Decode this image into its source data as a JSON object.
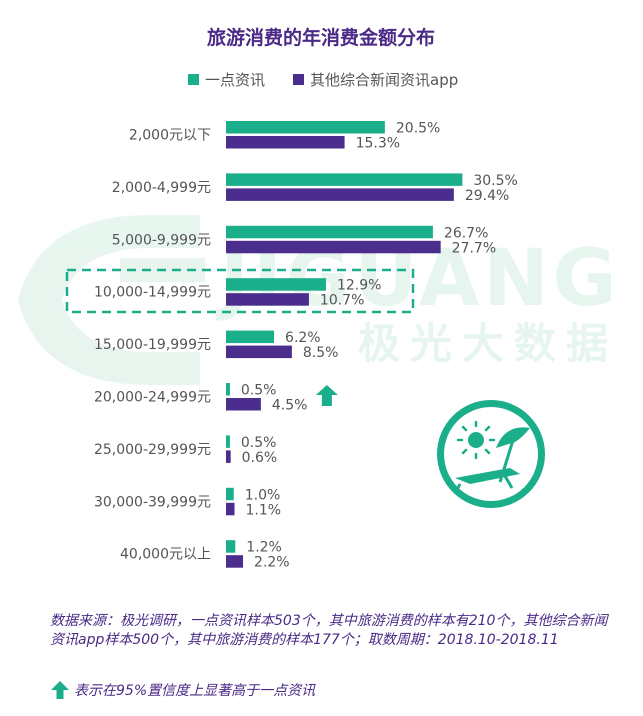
{
  "colors": {
    "series1": "#1aae8a",
    "series2": "#4b2d8d",
    "title": "#4a2a86",
    "arrow": "#1aae8a",
    "watermark": "#e6f5ee"
  },
  "watermark": {
    "brand_text": "JIGUANG",
    "cn_text": "极光大数据"
  },
  "chart_data": {
    "type": "bar",
    "orientation": "horizontal",
    "title": "旅游消费的年消费金额分布",
    "categories": [
      "2,000元以下",
      "2,000-4,999元",
      "5,000-9,999元",
      "10,000-14,999元",
      "15,000-19,999元",
      "20,000-24,999元",
      "25,000-29,999元",
      "30,000-39,999元",
      "40,000元以上"
    ],
    "series": [
      {
        "name": "一点资讯",
        "values": [
          20.5,
          30.5,
          26.7,
          12.9,
          6.2,
          0.5,
          0.5,
          1.0,
          1.2
        ],
        "labels": [
          "20.5%",
          "30.5%",
          "26.7%",
          "12.9%",
          "6.2%",
          "0.5%",
          "0.5%",
          "1.0%",
          "1.2%"
        ]
      },
      {
        "name": "其他综合新闻资讯app",
        "values": [
          15.3,
          29.4,
          27.7,
          10.7,
          8.5,
          4.5,
          0.6,
          1.1,
          2.2
        ],
        "labels": [
          "15.3%",
          "29.4%",
          "27.7%",
          "10.7%",
          "8.5%",
          "4.5%",
          "0.6%",
          "1.1%",
          "2.2%"
        ]
      }
    ],
    "highlighted_category": "10,000-14,999元",
    "significant_category": "20,000-24,999元",
    "legend_position": "top",
    "grid": false
  },
  "notes": {
    "source": "数据来源：极光调研，一点资讯样本503个，其中旅游消费的样本有210个，其他综合新闻资讯app样本500个，其中旅游消费的样本177个；取数周期：2018.10-2018.11",
    "significance": "表示在95%置信度上显著高于一点资讯"
  }
}
